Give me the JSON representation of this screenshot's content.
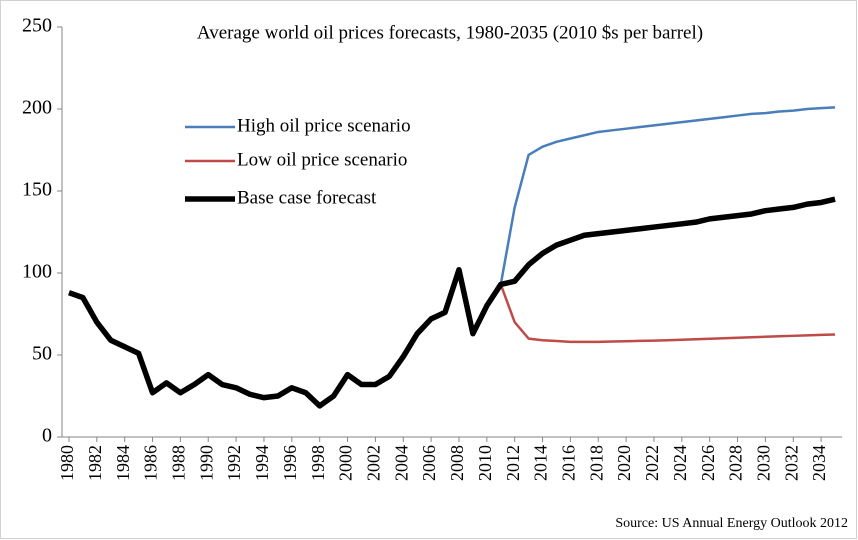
{
  "chart_data": {
    "type": "line",
    "title": "Average world oil prices forecasts, 1980-2035 (2010 $s per barrel)",
    "source": "Source: US Annual Energy Outlook 2012",
    "x": [
      1980,
      1981,
      1982,
      1983,
      1984,
      1985,
      1986,
      1987,
      1988,
      1989,
      1990,
      1991,
      1992,
      1993,
      1994,
      1995,
      1996,
      1997,
      1998,
      1999,
      2000,
      2001,
      2002,
      2003,
      2004,
      2005,
      2006,
      2007,
      2008,
      2009,
      2010,
      2011,
      2012,
      2013,
      2014,
      2015,
      2016,
      2017,
      2018,
      2019,
      2020,
      2021,
      2022,
      2023,
      2024,
      2025,
      2026,
      2027,
      2028,
      2029,
      2030,
      2031,
      2032,
      2033,
      2034,
      2035
    ],
    "xlim": [
      1979.5,
      2035.5
    ],
    "xticks": [
      1980,
      1982,
      1984,
      1986,
      1988,
      1990,
      1992,
      1994,
      1996,
      1998,
      2000,
      2002,
      2004,
      2006,
      2008,
      2010,
      2012,
      2014,
      2016,
      2018,
      2020,
      2022,
      2024,
      2026,
      2028,
      2030,
      2032,
      2034
    ],
    "ylim": [
      0,
      250
    ],
    "yticks": [
      0,
      50,
      100,
      150,
      200,
      250
    ],
    "grid": false,
    "legend": "upper left",
    "series": [
      {
        "name": "High oil price scenario",
        "color": "#4a7ebb",
        "width": 2.5,
        "values": [
          null,
          null,
          null,
          null,
          null,
          null,
          null,
          null,
          null,
          null,
          null,
          null,
          null,
          null,
          null,
          null,
          null,
          null,
          null,
          null,
          null,
          null,
          null,
          null,
          null,
          null,
          null,
          null,
          null,
          null,
          null,
          93,
          140,
          172,
          177,
          180,
          182,
          184,
          186,
          187,
          188,
          189,
          190,
          191,
          192,
          193,
          194,
          195,
          196,
          197,
          197.5,
          198.5,
          199,
          200,
          200.5,
          201
        ]
      },
      {
        "name": "Low oil price scenario",
        "color": "#be4b48",
        "width": 2.5,
        "values": [
          null,
          null,
          null,
          null,
          null,
          null,
          null,
          null,
          null,
          null,
          null,
          null,
          null,
          null,
          null,
          null,
          null,
          null,
          null,
          null,
          null,
          null,
          null,
          null,
          null,
          null,
          null,
          null,
          null,
          null,
          null,
          93,
          70,
          60,
          59,
          58.5,
          58,
          58,
          58,
          58.2,
          58.4,
          58.6,
          58.8,
          59,
          59.3,
          59.6,
          59.9,
          60.2,
          60.5,
          60.8,
          61.1,
          61.4,
          61.7,
          62,
          62.3,
          62.5
        ]
      },
      {
        "name": "Base case forecast",
        "color": "#000000",
        "width": 5.5,
        "values": [
          88,
          85,
          70,
          59,
          55,
          51,
          27,
          33,
          27,
          32,
          38,
          32,
          30,
          26,
          24,
          25,
          30,
          27,
          19,
          25,
          38,
          32,
          32,
          37,
          49,
          63,
          72,
          76,
          102,
          63,
          80,
          93,
          95,
          105,
          112,
          117,
          120,
          123,
          124,
          125,
          126,
          127,
          128,
          129,
          130,
          131,
          133,
          134,
          135,
          136,
          138,
          139,
          140,
          142,
          143,
          145
        ]
      }
    ]
  }
}
